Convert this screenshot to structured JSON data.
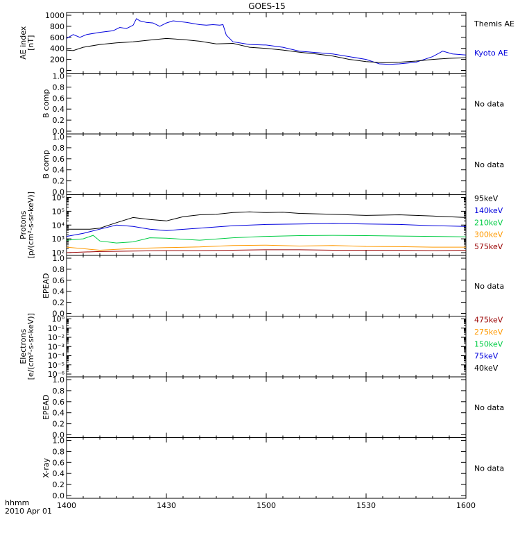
{
  "title": "GOES-15",
  "footer": {
    "line1": "hhmm",
    "line2": "2010 Apr 01"
  },
  "no_data_text": "No data",
  "colors": {
    "black": "#000000",
    "blue": "#0000dd",
    "green": "#00cc44",
    "orange": "#ff9900",
    "darkred": "#990000"
  },
  "chart_data": [
    {
      "type": "line",
      "panel": "ae",
      "ylabel": [
        "AE index",
        "[nT]"
      ],
      "ylim": [
        0,
        1000
      ],
      "yticks": [
        0,
        200,
        400,
        600,
        800,
        1000
      ],
      "x_time_ticks": [
        "1400",
        "1430",
        "1500",
        "1530",
        "1600"
      ],
      "series": [
        {
          "name": "Kyoto AE",
          "color": "#0000dd",
          "x": [
            "1400",
            "1402",
            "1404",
            "1406",
            "1410",
            "1414",
            "1416",
            "1418",
            "1420",
            "1421",
            "1422",
            "1424",
            "1426",
            "1428",
            "1430",
            "1432",
            "1436",
            "1440",
            "1442",
            "1444",
            "1446",
            "1447",
            "1448",
            "1450",
            "1455",
            "1500",
            "1505",
            "1510",
            "1520",
            "1530",
            "1534",
            "1537",
            "1540",
            "1545",
            "1550",
            "1553",
            "1556",
            "1600"
          ],
          "values": [
            580,
            650,
            600,
            650,
            690,
            720,
            780,
            760,
            820,
            940,
            900,
            870,
            860,
            800,
            860,
            900,
            870,
            830,
            820,
            830,
            820,
            830,
            640,
            520,
            470,
            460,
            420,
            350,
            300,
            200,
            120,
            110,
            120,
            150,
            250,
            350,
            300,
            280
          ]
        },
        {
          "name": "Themis AE",
          "color": "#000000",
          "x": [
            "1400",
            "1402",
            "1405",
            "1410",
            "1415",
            "1420",
            "1425",
            "1430",
            "1435",
            "1440",
            "1445",
            "1450",
            "1455",
            "1500",
            "1505",
            "1510",
            "1515",
            "1520",
            "1525",
            "1530",
            "1535",
            "1540",
            "1545",
            "1550",
            "1555",
            "1600"
          ],
          "values": [
            370,
            360,
            420,
            470,
            500,
            520,
            550,
            580,
            560,
            530,
            480,
            490,
            420,
            400,
            370,
            330,
            300,
            260,
            200,
            160,
            140,
            150,
            170,
            200,
            220,
            230
          ]
        }
      ]
    },
    {
      "type": "line",
      "panel": "b1",
      "ylabel": [
        "B comp"
      ],
      "ylim": [
        0,
        1
      ],
      "yticks": [
        "0.0",
        "0.2",
        "0.4",
        "0.6",
        "0.8",
        "1.0"
      ],
      "note": "No data",
      "series": []
    },
    {
      "type": "line",
      "panel": "b2",
      "ylabel": [
        "B comp"
      ],
      "ylim": [
        0,
        1
      ],
      "yticks": [
        "0.0",
        "0.2",
        "0.4",
        "0.6",
        "0.8",
        "1.0"
      ],
      "note": "No data",
      "series": []
    },
    {
      "type": "line",
      "panel": "protons",
      "log_scale": true,
      "ylabel": [
        "Protons",
        "[p/(cm²-s-sr-keV)]"
      ],
      "ylim": [
        100,
        1000000
      ],
      "yticks": [
        "10²",
        "10³",
        "10⁴",
        "10⁵",
        "10⁶"
      ],
      "series": [
        {
          "name": "575keV",
          "color": "#990000",
          "x": [
            "1400",
            "1410",
            "1420",
            "1430",
            "1440",
            "1450",
            "1500",
            "1510",
            "1520",
            "1530",
            "1540",
            "1550",
            "1600"
          ],
          "values": [
            100,
            120,
            130,
            140,
            140,
            150,
            160,
            160,
            150,
            150,
            150,
            140,
            150
          ]
        },
        {
          "name": "300keV",
          "color": "#ff9900",
          "x": [
            "1400",
            "1410",
            "1420",
            "1430",
            "1440",
            "1450",
            "1500",
            "1510",
            "1520",
            "1530",
            "1540",
            "1550",
            "1600"
          ],
          "values": [
            250,
            150,
            200,
            230,
            260,
            330,
            350,
            300,
            330,
            280,
            270,
            250,
            250
          ]
        },
        {
          "name": "210keV",
          "color": "#00cc44",
          "x": [
            "1400",
            "1405",
            "1408",
            "1410",
            "1415",
            "1420",
            "1425",
            "1430",
            "1440",
            "1450",
            "1500",
            "1510",
            "1520",
            "1530",
            "1540",
            "1550",
            "1600"
          ],
          "values": [
            800,
            1000,
            1800,
            700,
            500,
            600,
            1200,
            1100,
            800,
            1200,
            1500,
            1700,
            1800,
            1700,
            1600,
            1500,
            1400
          ]
        },
        {
          "name": "140keV",
          "color": "#0000dd",
          "x": [
            "1400",
            "1405",
            "1410",
            "1415",
            "1420",
            "1425",
            "1430",
            "1440",
            "1450",
            "1500",
            "1510",
            "1520",
            "1530",
            "1540",
            "1550",
            "1600"
          ],
          "values": [
            1500,
            2500,
            5000,
            10000,
            8000,
            5000,
            4000,
            6000,
            9000,
            11000,
            12000,
            13000,
            12000,
            11000,
            9000,
            8000
          ]
        },
        {
          "name": "95keV",
          "color": "#000000",
          "x": [
            "1400",
            "1404",
            "1407",
            "1410",
            "1415",
            "1420",
            "1425",
            "1430",
            "1435",
            "1440",
            "1445",
            "1450",
            "1455",
            "1500",
            "1505",
            "1510",
            "1520",
            "1530",
            "1540",
            "1550",
            "1600"
          ],
          "values": [
            5000,
            5000,
            5000,
            6000,
            15000,
            35000,
            25000,
            20000,
            40000,
            55000,
            60000,
            80000,
            90000,
            80000,
            85000,
            70000,
            60000,
            50000,
            55000,
            45000,
            35000
          ]
        }
      ]
    },
    {
      "type": "line",
      "panel": "epead1",
      "ylabel": [
        "EPEAD"
      ],
      "ylim": [
        0,
        1
      ],
      "yticks": [
        "0.0",
        "0.2",
        "0.4",
        "0.6",
        "0.8",
        "1.0"
      ],
      "note": "No data",
      "series": []
    },
    {
      "type": "line",
      "panel": "electrons",
      "log_scale": true,
      "ylabel": [
        "Electrons",
        "[e/(cm²-s-sr-keV)]"
      ],
      "ylim": [
        1e-06,
        1
      ],
      "yticks": [
        "10⁻⁶",
        "10⁻⁵",
        "10⁻⁴",
        "10⁻³",
        "10⁻²",
        "10⁻¹",
        "10⁰"
      ],
      "legend": [
        {
          "name": "475keV",
          "color": "#990000"
        },
        {
          "name": "275keV",
          "color": "#ff9900"
        },
        {
          "name": "150keV",
          "color": "#00cc44"
        },
        {
          "name": "75keV",
          "color": "#0000dd"
        },
        {
          "name": "40keV",
          "color": "#000000"
        }
      ],
      "series": []
    },
    {
      "type": "line",
      "panel": "epead2",
      "ylabel": [
        "EPEAD"
      ],
      "ylim": [
        0,
        1
      ],
      "yticks": [
        "0.0",
        "0.2",
        "0.4",
        "0.6",
        "0.8",
        "1.0"
      ],
      "note": "No data",
      "series": []
    },
    {
      "type": "line",
      "panel": "xray",
      "ylabel": [
        "X-ray"
      ],
      "ylim": [
        0,
        1
      ],
      "yticks": [
        "0.0",
        "0.2",
        "0.4",
        "0.6",
        "0.8",
        "1.0"
      ],
      "note": "No data",
      "series": []
    }
  ]
}
